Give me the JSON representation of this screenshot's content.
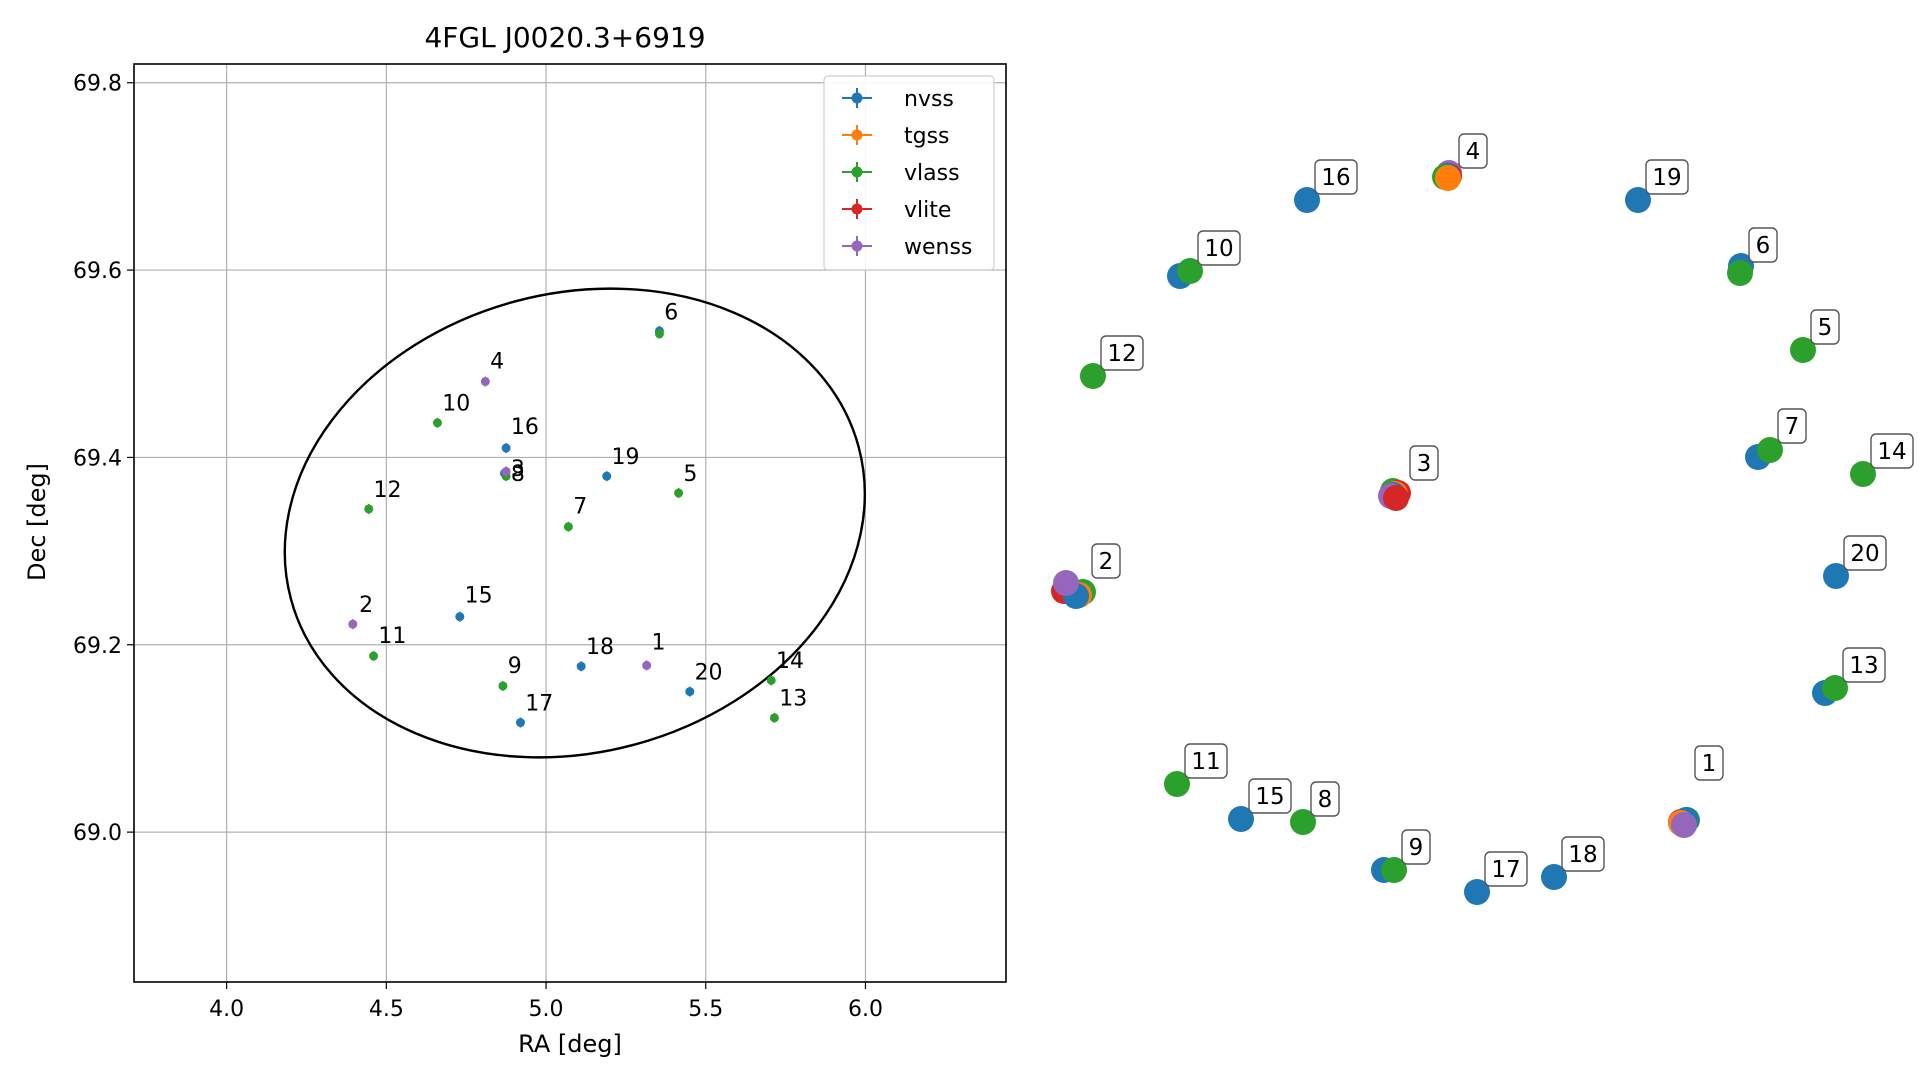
{
  "chart_data": [
    {
      "type": "scatter",
      "title": "4FGL J0020.3+6919",
      "xlabel": "RA [deg]",
      "ylabel": "Dec [deg]",
      "xlim": [
        3.71,
        6.44
      ],
      "ylim": [
        68.84,
        69.82
      ],
      "xticks": [
        "4.0",
        "4.5",
        "5.0",
        "5.5",
        "6.0"
      ],
      "xtick_values": [
        4.0,
        4.5,
        5.0,
        5.5,
        6.0
      ],
      "yticks": [
        "69.0",
        "69.2",
        "69.4",
        "69.6",
        "69.8"
      ],
      "ytick_values": [
        69.0,
        69.2,
        69.4,
        69.6,
        69.8
      ],
      "grid": true,
      "legend_position": "top-right",
      "ellipse": {
        "center_ra": 5.09,
        "center_dec": 69.33,
        "semi_major_ra": 0.92,
        "semi_minor_dec": 0.245,
        "angle_deg": 15
      },
      "series": [
        {
          "name": "nvss",
          "color": "#1f77b4",
          "points": [
            {
              "ra": 4.875,
              "dec": 69.41
            },
            {
              "ra": 5.19,
              "dec": 69.38
            },
            {
              "ra": 4.73,
              "dec": 69.23
            },
            {
              "ra": 5.11,
              "dec": 69.177
            },
            {
              "ra": 4.92,
              "dec": 69.117
            },
            {
              "ra": 5.45,
              "dec": 69.15
            },
            {
              "ra": 5.355,
              "dec": 69.535
            },
            {
              "ra": 4.87,
              "dec": 69.383
            }
          ]
        },
        {
          "name": "tgss",
          "color": "#ff7f0e",
          "points": []
        },
        {
          "name": "vlass",
          "color": "#2ca02c",
          "points": [
            {
              "ra": 4.66,
              "dec": 69.437
            },
            {
              "ra": 4.445,
              "dec": 69.345
            },
            {
              "ra": 5.07,
              "dec": 69.326
            },
            {
              "ra": 5.415,
              "dec": 69.362
            },
            {
              "ra": 5.355,
              "dec": 69.532
            },
            {
              "ra": 4.46,
              "dec": 69.188
            },
            {
              "ra": 4.865,
              "dec": 69.156
            },
            {
              "ra": 5.705,
              "dec": 69.162
            },
            {
              "ra": 5.715,
              "dec": 69.122
            },
            {
              "ra": 4.875,
              "dec": 69.38
            }
          ]
        },
        {
          "name": "vlite",
          "color": "#d62728",
          "points": []
        },
        {
          "name": "wenss",
          "color": "#9467bd",
          "points": [
            {
              "ra": 4.81,
              "dec": 69.481
            },
            {
              "ra": 4.395,
              "dec": 69.222
            },
            {
              "ra": 5.315,
              "dec": 69.178
            },
            {
              "ra": 4.875,
              "dec": 69.385
            }
          ]
        }
      ],
      "labels": [
        {
          "text": "1",
          "ra": 5.33,
          "dec": 69.195
        },
        {
          "text": "2",
          "ra": 4.415,
          "dec": 69.235
        },
        {
          "text": "3",
          "ra": 4.89,
          "dec": 69.38
        },
        {
          "text": "4",
          "ra": 4.825,
          "dec": 69.495
        },
        {
          "text": "5",
          "ra": 5.43,
          "dec": 69.375
        },
        {
          "text": "6",
          "ra": 5.37,
          "dec": 69.547
        },
        {
          "text": "7",
          "ra": 5.085,
          "dec": 69.34
        },
        {
          "text": "8",
          "ra": 4.89,
          "dec": 69.375
        },
        {
          "text": "9",
          "ra": 4.88,
          "dec": 69.17
        },
        {
          "text": "10",
          "ra": 4.675,
          "dec": 69.45
        },
        {
          "text": "11",
          "ra": 4.475,
          "dec": 69.202
        },
        {
          "text": "12",
          "ra": 4.46,
          "dec": 69.358
        },
        {
          "text": "13",
          "ra": 5.73,
          "dec": 69.135
        },
        {
          "text": "14",
          "ra": 5.72,
          "dec": 69.175
        },
        {
          "text": "15",
          "ra": 4.745,
          "dec": 69.245
        },
        {
          "text": "16",
          "ra": 4.89,
          "dec": 69.425
        },
        {
          "text": "17",
          "ra": 4.935,
          "dec": 69.13
        },
        {
          "text": "18",
          "ra": 5.125,
          "dec": 69.19
        },
        {
          "text": "19",
          "ra": 5.205,
          "dec": 69.393
        },
        {
          "text": "20",
          "ra": 5.465,
          "dec": 69.163
        }
      ]
    },
    {
      "type": "scatter",
      "title": "",
      "legend_ref": [
        "nvss",
        "tgss",
        "vlass",
        "vlite",
        "wenss"
      ],
      "groups": [
        {
          "label": "1",
          "markers": [
            [
              "vlass",
              0.5,
              0.16
            ],
            [
              "vlite",
              0.44,
              0.14
            ],
            [
              "nvss",
              0.49,
              0.16
            ],
            [
              "tgss",
              0.44,
              0.13
            ],
            [
              "wenss",
              0.47,
              0.11
            ]
          ]
        },
        {
          "label": "2",
          "markers": [
            [
              "vlite",
              0.3,
              0.43
            ],
            [
              "vlass",
              0.49,
              0.42
            ],
            [
              "tgss",
              0.45,
              0.39
            ],
            [
              "nvss",
              0.42,
              0.38
            ],
            [
              "wenss",
              0.32,
              0.51
            ]
          ]
        },
        {
          "label": "3",
          "markers": [
            [
              "vlass",
              0.41,
              0.45
            ],
            [
              "vlite",
              0.46,
              0.43
            ],
            [
              "tgss",
              0.43,
              0.42
            ],
            [
              "nvss",
              0.41,
              0.41
            ],
            [
              "wenss",
              0.39,
              0.4
            ],
            [
              "vlite",
              0.44,
              0.38
            ]
          ]
        },
        {
          "label": "4",
          "markers": [
            [
              "wenss",
              0.48,
              0.51
            ],
            [
              "vlass",
              0.47,
              0.47
            ],
            [
              "vlite",
              0.48,
              0.48
            ],
            [
              "nvss",
              0.46,
              0.48
            ],
            [
              "vlass",
              0.44,
              0.47
            ],
            [
              "tgss",
              0.47,
              0.46
            ]
          ]
        },
        {
          "label": "5",
          "markers": [
            [
              "vlass",
              0.5,
              0.5
            ]
          ]
        },
        {
          "label": "6",
          "markers": [
            [
              "nvss",
              0.5,
              0.52
            ],
            [
              "vlass",
              0.49,
              0.45
            ]
          ]
        },
        {
          "label": "7",
          "markers": [
            [
              "nvss",
              0.38,
              0.42
            ],
            [
              "vlass",
              0.5,
              0.49
            ]
          ]
        },
        {
          "label": "8",
          "markers": [
            [
              "vlass",
              0.5,
              0.5
            ]
          ]
        },
        {
          "label": "9",
          "markers": [
            [
              "nvss",
              0.4,
              0.5
            ],
            [
              "vlass",
              0.5,
              0.5
            ]
          ]
        },
        {
          "label": "10",
          "markers": [
            [
              "nvss",
              0.4,
              0.45
            ],
            [
              "vlass",
              0.5,
              0.5
            ]
          ]
        },
        {
          "label": "11",
          "markers": [
            [
              "vlass",
              0.5,
              0.5
            ]
          ]
        },
        {
          "label": "12",
          "markers": [
            [
              "vlass",
              0.5,
              0.5
            ]
          ]
        },
        {
          "label": "13",
          "markers": [
            [
              "nvss",
              0.4,
              0.45
            ],
            [
              "vlass",
              0.5,
              0.5
            ]
          ]
        },
        {
          "label": "14",
          "markers": [
            [
              "vlass",
              0.5,
              0.5
            ]
          ]
        },
        {
          "label": "15",
          "markers": [
            [
              "nvss",
              0.5,
              0.5
            ]
          ]
        },
        {
          "label": "16",
          "markers": [
            [
              "nvss",
              0.5,
              0.5
            ]
          ]
        },
        {
          "label": "17",
          "markers": [
            [
              "nvss",
              0.5,
              0.5
            ]
          ]
        },
        {
          "label": "18",
          "markers": [
            [
              "nvss",
              0.5,
              0.5
            ]
          ]
        },
        {
          "label": "19",
          "markers": [
            [
              "nvss",
              0.5,
              0.5
            ]
          ]
        },
        {
          "label": "20",
          "markers": [
            [
              "nvss",
              0.5,
              0.5
            ]
          ]
        }
      ]
    }
  ],
  "colors": {
    "nvss": "#1f77b4",
    "tgss": "#ff7f0e",
    "vlass": "#2ca02c",
    "vlite": "#d62728",
    "wenss": "#9467bd",
    "grid": "#b0b0b0",
    "ellipse": "#000000"
  }
}
